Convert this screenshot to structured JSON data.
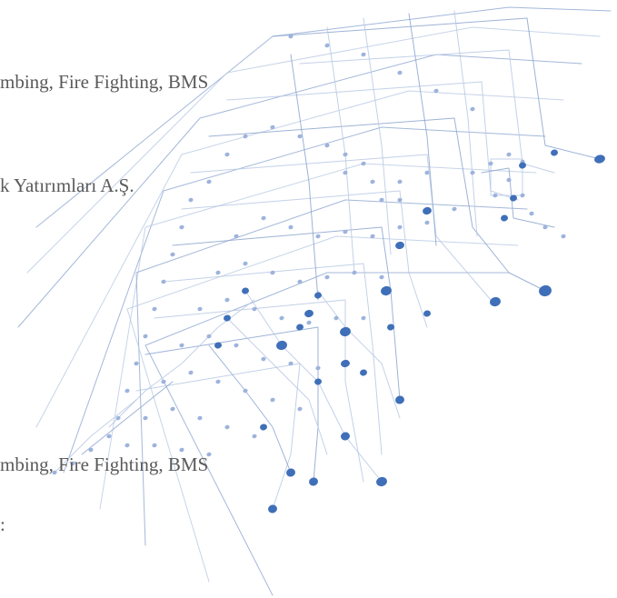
{
  "text_lines": [
    "mbing, Fire Fighting, BMS",
    "k Yatırımları A.Ş.",
    "mbing, Fire Fighting, BMS",
    ":"
  ],
  "colors": {
    "background": "#ffffff",
    "text": "#5a5a5a",
    "line_light": "#b9c9e4",
    "line_mid": "#8da6d0",
    "node_light": "#9db3dc",
    "node_dark": "#3f6fb8"
  }
}
